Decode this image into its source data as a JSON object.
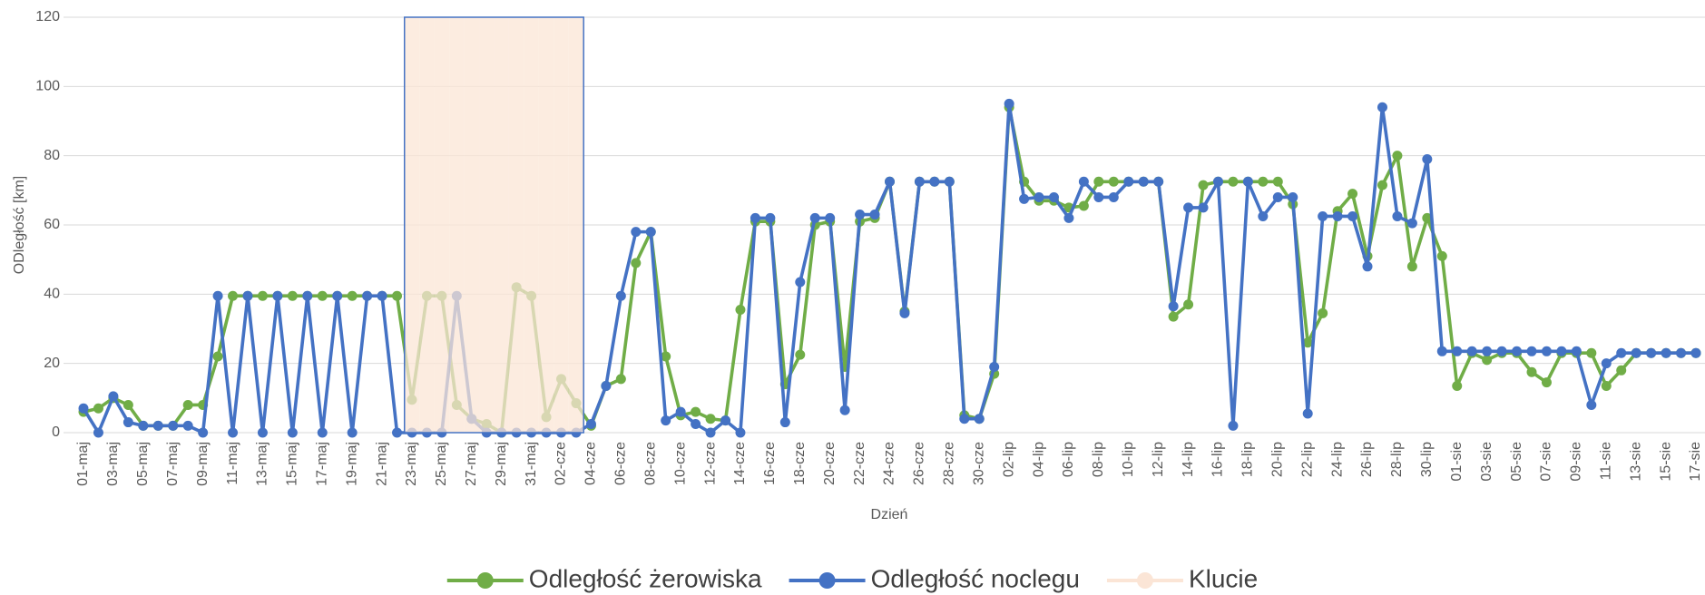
{
  "chart_data": {
    "type": "line",
    "y_label": "ODległość [km]",
    "x_label": "Dzień",
    "categories": [
      "01-maj",
      null,
      "03-maj",
      null,
      "05-maj",
      null,
      "07-maj",
      null,
      "09-maj",
      null,
      "11-maj",
      null,
      "13-maj",
      null,
      "15-maj",
      null,
      "17-maj",
      null,
      "19-maj",
      null,
      "21-maj",
      null,
      "23-maj",
      null,
      "25-maj",
      null,
      "27-maj",
      null,
      "29-maj",
      null,
      "31-maj",
      null,
      "02-cze",
      null,
      "04-cze",
      null,
      "06-cze",
      null,
      "08-cze",
      null,
      "10-cze",
      null,
      "12-cze",
      null,
      "14-cze",
      null,
      "16-cze",
      null,
      "18-cze",
      null,
      "20-cze",
      null,
      "22-cze",
      null,
      "24-cze",
      null,
      "26-cze",
      null,
      "28-cze",
      null,
      "30-cze",
      null,
      "02-lip",
      null,
      "04-lip",
      null,
      "06-lip",
      null,
      "08-lip",
      null,
      "10-lip",
      null,
      "12-lip",
      null,
      "14-lip",
      null,
      "16-lip",
      null,
      "18-lip",
      null,
      "20-lip",
      null,
      "22-lip",
      null,
      "24-lip",
      null,
      "26-lip",
      null,
      "28-lip",
      null,
      "30-lip",
      null,
      "01-sie",
      null,
      "03-sie",
      null,
      "05-sie",
      null,
      "07-sie",
      null,
      "09-sie",
      null,
      "11-sie",
      null,
      "13-sie",
      null,
      "15-sie",
      null,
      "17-sie"
    ],
    "series": [
      {
        "name": "Odległość żerowiska",
        "color": "#70ad47",
        "values": [
          6,
          7,
          10,
          8,
          2,
          2,
          2,
          8,
          8,
          22,
          39.5,
          39.5,
          39.5,
          39.5,
          39.5,
          39.5,
          39.5,
          39.5,
          39.5,
          39.5,
          39.5,
          39.5,
          9.5,
          39.5,
          39.5,
          8,
          4,
          2.5,
          0,
          42,
          39.5,
          4.5,
          15.5,
          8.5,
          2,
          13.5,
          15.5,
          49,
          58,
          22,
          5,
          6,
          4,
          3.5,
          35.5,
          61,
          61,
          14,
          22.5,
          60,
          61,
          19,
          61,
          62,
          72.5,
          35,
          72.5,
          72.5,
          72.5,
          5,
          4,
          17,
          94,
          72.5,
          67,
          67,
          65,
          65.5,
          72.5,
          72.5,
          72.5,
          72.5,
          72.5,
          33.5,
          37,
          71.5,
          72.5,
          72.5,
          72.5,
          72.5,
          72.5,
          66,
          26,
          34.5,
          64,
          69,
          51,
          71.5,
          80,
          48,
          62,
          51,
          13.5,
          23,
          21,
          23,
          23,
          17.5,
          14.5,
          23,
          23,
          23,
          13.5,
          18,
          23,
          23,
          23,
          23,
          23
        ]
      },
      {
        "name": "Odległość noclegu",
        "color": "#4472c4",
        "values": [
          7,
          0,
          10.5,
          3,
          2,
          2,
          2,
          2,
          0,
          39.5,
          0,
          39.5,
          0,
          39.5,
          0,
          39.5,
          0,
          39.5,
          0,
          39.5,
          39.5,
          0,
          0,
          0,
          0,
          39.5,
          4,
          0,
          0,
          0,
          0,
          0,
          0,
          0,
          2.5,
          13.5,
          39.5,
          58,
          58,
          3.5,
          6,
          2.5,
          0,
          3.5,
          0,
          62,
          62,
          3,
          43.5,
          62,
          62,
          6.5,
          63,
          63,
          72.5,
          34.5,
          72.5,
          72.5,
          72.5,
          4,
          4,
          19,
          95,
          67.5,
          68,
          68,
          62,
          72.5,
          68,
          68,
          72.5,
          72.5,
          72.5,
          36.5,
          65,
          65,
          72.5,
          2,
          72.5,
          62.5,
          68,
          68,
          5.5,
          62.5,
          62.5,
          62.5,
          48,
          94,
          62.5,
          60.5,
          79,
          23.5,
          23.5,
          23.5,
          23.5,
          23.5,
          23.5,
          23.5,
          23.5,
          23.5,
          23.5,
          8,
          20,
          23,
          23,
          23,
          23,
          23,
          23
        ]
      },
      {
        "name": "Klucie",
        "color": "#fbe5d6",
        "kind": "bar",
        "values": [
          null,
          null,
          null,
          null,
          null,
          null,
          null,
          null,
          null,
          null,
          null,
          null,
          null,
          null,
          null,
          null,
          null,
          null,
          null,
          null,
          null,
          null,
          120,
          120,
          120,
          120,
          120,
          120,
          120,
          120,
          120,
          120,
          120,
          120,
          null,
          null,
          null,
          null,
          null,
          null,
          null,
          null,
          null,
          null,
          null,
          null,
          null,
          null,
          null,
          null,
          null,
          null,
          null,
          null,
          null,
          null,
          null,
          null,
          null,
          null,
          null,
          null,
          null,
          null,
          null,
          null,
          null,
          null,
          null,
          null,
          null,
          null,
          null,
          null,
          null,
          null,
          null,
          null,
          null,
          null,
          null,
          null,
          null,
          null,
          null,
          null,
          null,
          null,
          null,
          null,
          null,
          null,
          null,
          null,
          null,
          null,
          null,
          null,
          null,
          null,
          null,
          null,
          null,
          null,
          null,
          null,
          null,
          null,
          null
        ]
      }
    ],
    "ylim": [
      0,
      120
    ],
    "yticks": [
      0,
      20,
      40,
      60,
      80,
      100,
      120
    ],
    "grid": true,
    "legend": "bottom"
  }
}
